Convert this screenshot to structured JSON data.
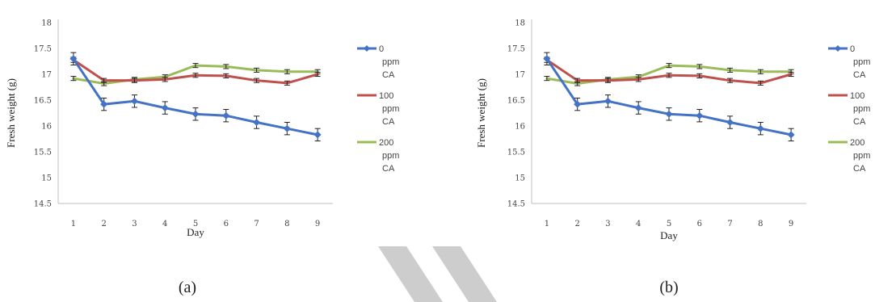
{
  "colors": {
    "series_0": "#4472c4",
    "series_100": "#c0504d",
    "series_200": "#9bbb59",
    "axis": "#bfbfbf",
    "watermark": "#c8c8c8"
  },
  "chart_data": [
    {
      "type": "line",
      "panel_label": "(a)",
      "xlabel": "Day",
      "ylabel": "Fresh weight (g)",
      "ylim": [
        14.5,
        18
      ],
      "yticks": [
        "14.5",
        "15",
        "15.5",
        "16",
        "16.5",
        "17",
        "17.5",
        "18"
      ],
      "categories": [
        "1",
        "2",
        "3",
        "4",
        "5",
        "6",
        "7",
        "8",
        "9"
      ],
      "grid": false,
      "legend_position": "right",
      "series": [
        {
          "name": "0 ppm CA",
          "legend_lines": [
            "0",
            "ppm",
            "CA"
          ],
          "color": "#4472c4",
          "marker": "diamond",
          "values": [
            17.3,
            16.42,
            16.48,
            16.35,
            16.23,
            16.2,
            16.07,
            15.95,
            15.83
          ],
          "error": [
            0.12,
            0.12,
            0.12,
            0.12,
            0.12,
            0.12,
            0.12,
            0.12,
            0.12
          ]
        },
        {
          "name": "100 ppm CA",
          "legend_lines": [
            "100",
            "ppm",
            "CA"
          ],
          "color": "#c0504d",
          "marker": "none",
          "values": [
            17.28,
            16.88,
            16.88,
            16.9,
            16.98,
            16.97,
            16.88,
            16.83,
            17.0
          ],
          "error": [
            0.05,
            0.04,
            0.04,
            0.04,
            0.04,
            0.04,
            0.04,
            0.04,
            0.04
          ]
        },
        {
          "name": "200 ppm CA",
          "legend_lines": [
            "200",
            "ppm",
            "CA"
          ],
          "color": "#9bbb59",
          "marker": "none",
          "values": [
            16.92,
            16.82,
            16.9,
            16.95,
            17.17,
            17.15,
            17.08,
            17.05,
            17.05
          ],
          "error": [
            0.04,
            0.04,
            0.04,
            0.04,
            0.04,
            0.04,
            0.04,
            0.04,
            0.04
          ]
        }
      ]
    },
    {
      "type": "line",
      "panel_label": "(b)",
      "xlabel": "Day",
      "ylabel": "Fresh weight (g)",
      "ylim": [
        14.5,
        18
      ],
      "yticks": [
        "14.5",
        "15",
        "15.5",
        "16",
        "16.5",
        "17",
        "17.5",
        "18"
      ],
      "categories": [
        "1",
        "2",
        "3",
        "4",
        "5",
        "6",
        "7",
        "8",
        "9"
      ],
      "grid": false,
      "legend_position": "right",
      "series": [
        {
          "name": "0 ppm CA",
          "legend_lines": [
            "0",
            "ppm",
            "CA"
          ],
          "color": "#4472c4",
          "marker": "diamond",
          "values": [
            17.3,
            16.42,
            16.48,
            16.35,
            16.23,
            16.2,
            16.07,
            15.95,
            15.83
          ],
          "error": [
            0.12,
            0.12,
            0.12,
            0.12,
            0.12,
            0.12,
            0.12,
            0.12,
            0.12
          ]
        },
        {
          "name": "100 ppm CA",
          "legend_lines": [
            "100",
            "ppm",
            "CA"
          ],
          "color": "#c0504d",
          "marker": "none",
          "values": [
            17.28,
            16.88,
            16.88,
            16.9,
            16.98,
            16.97,
            16.88,
            16.83,
            17.0
          ],
          "error": [
            0.05,
            0.04,
            0.04,
            0.04,
            0.04,
            0.04,
            0.04,
            0.04,
            0.04
          ]
        },
        {
          "name": "200 ppm CA",
          "legend_lines": [
            "200",
            "ppm",
            "CA"
          ],
          "color": "#9bbb59",
          "marker": "none",
          "values": [
            16.92,
            16.82,
            16.9,
            16.95,
            17.17,
            17.15,
            17.08,
            17.05,
            17.05
          ],
          "error": [
            0.04,
            0.04,
            0.04,
            0.04,
            0.04,
            0.04,
            0.04,
            0.04,
            0.04
          ]
        }
      ]
    }
  ]
}
